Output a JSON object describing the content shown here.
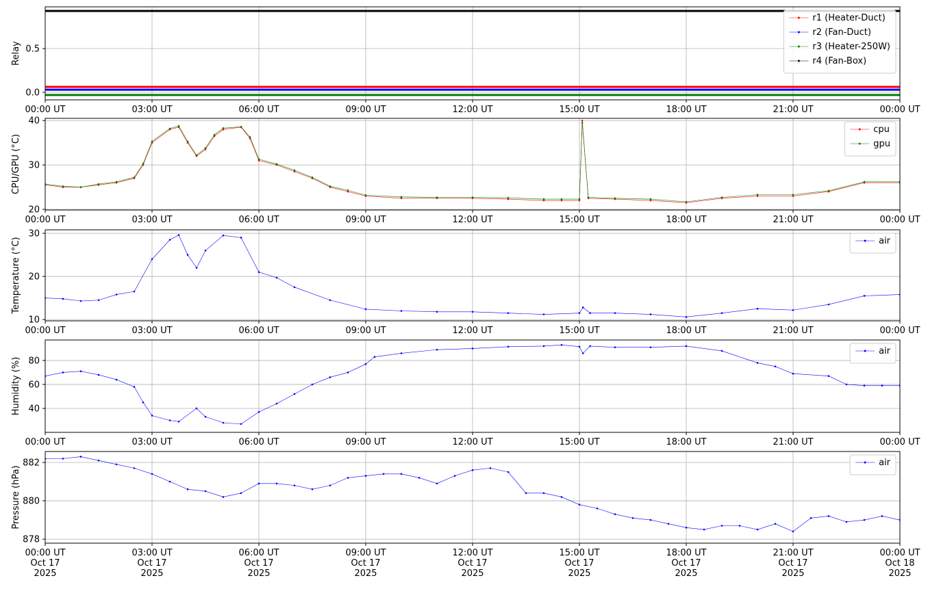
{
  "chart_data": [
    {
      "type": "line",
      "y_label": "Relay",
      "x": [
        0,
        24
      ],
      "xlim": [
        0,
        24
      ],
      "ylim": [
        -0.086,
        0.977
      ],
      "linewidth": 3,
      "grid": true,
      "legend": "upper right",
      "xticks": [
        {
          "value": 0,
          "label": "00:00 UT"
        },
        {
          "value": 3,
          "label": "03:00 UT"
        },
        {
          "value": 6,
          "label": "06:00 UT"
        },
        {
          "value": 9,
          "label": "09:00 UT"
        },
        {
          "value": 12,
          "label": "12:00 UT"
        },
        {
          "value": 15,
          "label": "15:00 UT"
        },
        {
          "value": 18,
          "label": "18:00 UT"
        },
        {
          "value": 21,
          "label": "21:00 UT"
        },
        {
          "value": 24,
          "label": "00:00 UT"
        }
      ],
      "yticks": [
        {
          "value": 0,
          "label": "0.0"
        },
        0.5
      ],
      "series": [
        {
          "name": "r1 (Heater-Duct)",
          "color": "#ff0000",
          "values": [
            0.0625,
            0.0625
          ]
        },
        {
          "name": "r2 (Fan-Duct)",
          "color": "#0000ff",
          "values": [
            0.03,
            0.03
          ]
        },
        {
          "name": "r3 (Heater-250W)",
          "color": "#008000",
          "values": [
            -0.03,
            -0.03
          ]
        },
        {
          "name": "r4 (Fan-Box)",
          "color": "#000000",
          "values": [
            0.93,
            0.93
          ]
        }
      ]
    },
    {
      "type": "line",
      "y_label": "CPU/GPU (°C)",
      "x": [
        0,
        0.5,
        1,
        1.5,
        2,
        2.5,
        2.75,
        3,
        3.5,
        3.75,
        4,
        4.25,
        4.5,
        4.75,
        5,
        5.5,
        5.75,
        6,
        6.5,
        7,
        7.5,
        8,
        8.5,
        9,
        10,
        11,
        12,
        13,
        14,
        14.5,
        15,
        15.08,
        15.25,
        16,
        17,
        18,
        19,
        20,
        21,
        22,
        23,
        24
      ],
      "xlim": [
        0,
        24
      ],
      "ylim": [
        19.85,
        40.5
      ],
      "linewidth": 0.6,
      "grid": true,
      "legend": "upper right",
      "xticks": [
        {
          "value": 0,
          "label": "00:00 UT"
        },
        {
          "value": 3,
          "label": "03:00 UT"
        },
        {
          "value": 6,
          "label": "06:00 UT"
        },
        {
          "value": 9,
          "label": "09:00 UT"
        },
        {
          "value": 12,
          "label": "12:00 UT"
        },
        {
          "value": 15,
          "label": "15:00 UT"
        },
        {
          "value": 18,
          "label": "18:00 UT"
        },
        {
          "value": 21,
          "label": "21:00 UT"
        },
        {
          "value": 24,
          "label": "00:00 UT"
        }
      ],
      "yticks": [
        20,
        30,
        40
      ],
      "series": [
        {
          "name": "cpu",
          "color": "#ff0000",
          "values": [
            25.5,
            25,
            25,
            25.5,
            26,
            27,
            30,
            35,
            38,
            38.5,
            35,
            32,
            33.5,
            36.5,
            38,
            38.5,
            36,
            31,
            30,
            28.5,
            27,
            25,
            24,
            23,
            22.5,
            22.5,
            22.5,
            22.3,
            22,
            22,
            22,
            40,
            22.5,
            22.3,
            22,
            21.5,
            22.5,
            23,
            23,
            24,
            26,
            26
          ]
        },
        {
          "name": "gpu",
          "color": "#008000",
          "values": [
            25.7,
            25.2,
            25,
            25.7,
            26.2,
            27.2,
            30.3,
            35.3,
            38.2,
            38.8,
            35.3,
            32.2,
            33.8,
            36.8,
            38.3,
            38.6,
            36.3,
            31.3,
            30.2,
            28.8,
            27.2,
            25.2,
            24.3,
            23.2,
            22.8,
            22.7,
            22.7,
            22.6,
            22.3,
            22.3,
            22.3,
            39.5,
            22.7,
            22.5,
            22.3,
            21.7,
            22.7,
            23.3,
            23.3,
            24.2,
            26.2,
            26.2
          ]
        }
      ]
    },
    {
      "type": "line",
      "y_label": "Temperature (°C)",
      "x": [
        0,
        0.5,
        1,
        1.5,
        2,
        2.5,
        3,
        3.5,
        3.75,
        4,
        4.25,
        4.5,
        5,
        5.5,
        6,
        6.5,
        7,
        8,
        9,
        10,
        11,
        12,
        13,
        14,
        15,
        15.1,
        15.3,
        16,
        17,
        18,
        19,
        20,
        21,
        22,
        23,
        24
      ],
      "xlim": [
        0,
        24
      ],
      "ylim": [
        9.7,
        30.8
      ],
      "linewidth": 0.6,
      "grid": true,
      "legend": "upper right",
      "xticks": [
        {
          "value": 0,
          "label": "00:00 UT"
        },
        {
          "value": 3,
          "label": "03:00 UT"
        },
        {
          "value": 6,
          "label": "06:00 UT"
        },
        {
          "value": 9,
          "label": "09:00 UT"
        },
        {
          "value": 12,
          "label": "12:00 UT"
        },
        {
          "value": 15,
          "label": "15:00 UT"
        },
        {
          "value": 18,
          "label": "18:00 UT"
        },
        {
          "value": 21,
          "label": "21:00 UT"
        },
        {
          "value": 24,
          "label": "00:00 UT"
        }
      ],
      "yticks": [
        10,
        20,
        30
      ],
      "series": [
        {
          "name": "air",
          "color": "#0000ff",
          "values": [
            15,
            14.8,
            14.3,
            14.5,
            15.8,
            16.5,
            24,
            28.5,
            29.6,
            25,
            22,
            26,
            29.5,
            29,
            21,
            19.7,
            17.5,
            14.5,
            12.4,
            12,
            11.8,
            11.8,
            11.5,
            11.2,
            11.5,
            12.8,
            11.5,
            11.5,
            11.2,
            10.6,
            11.5,
            12.5,
            12.2,
            13.5,
            15.5,
            15.8
          ]
        }
      ]
    },
    {
      "type": "line",
      "y_label": "Humidity (%)",
      "x": [
        0,
        0.5,
        1,
        1.5,
        2,
        2.5,
        2.75,
        3,
        3.5,
        3.75,
        4.25,
        4.5,
        5,
        5.5,
        6,
        6.5,
        7,
        7.5,
        8,
        8.5,
        9,
        9.25,
        10,
        11,
        12,
        13,
        14,
        14.5,
        15,
        15.1,
        15.3,
        16,
        17,
        18,
        19,
        20,
        20.5,
        21,
        22,
        22.5,
        23,
        23.5,
        24
      ],
      "xlim": [
        0,
        24
      ],
      "ylim": [
        20,
        97.1
      ],
      "linewidth": 0.6,
      "grid": true,
      "legend": "upper right",
      "xticks": [
        {
          "value": 0,
          "label": "00:00 UT"
        },
        {
          "value": 3,
          "label": "03:00 UT"
        },
        {
          "value": 6,
          "label": "06:00 UT"
        },
        {
          "value": 9,
          "label": "09:00 UT"
        },
        {
          "value": 12,
          "label": "12:00 UT"
        },
        {
          "value": 15,
          "label": "15:00 UT"
        },
        {
          "value": 18,
          "label": "18:00 UT"
        },
        {
          "value": 21,
          "label": "21:00 UT"
        },
        {
          "value": 24,
          "label": "00:00 UT"
        }
      ],
      "yticks": [
        40,
        60,
        80
      ],
      "series": [
        {
          "name": "air",
          "color": "#0000ff",
          "values": [
            67,
            70,
            71,
            68,
            64,
            58,
            45,
            34,
            30,
            29,
            40,
            33,
            28,
            27,
            37,
            44,
            52,
            60,
            66,
            70,
            77,
            83,
            86,
            89,
            90,
            91.5,
            92,
            93,
            91.5,
            86,
            92,
            91,
            91,
            92,
            88,
            78,
            75,
            69,
            67,
            60,
            59,
            59,
            59
          ]
        }
      ]
    },
    {
      "type": "line",
      "y_label": "Pressure (hPa)",
      "x": [
        0,
        0.5,
        1,
        1.5,
        2,
        2.5,
        3,
        3.5,
        4,
        4.5,
        5,
        5.5,
        6,
        6.5,
        7,
        7.5,
        8,
        8.5,
        9,
        9.5,
        10,
        10.5,
        11,
        11.5,
        12,
        12.5,
        13,
        13.5,
        14,
        14.5,
        15,
        15.5,
        16,
        16.5,
        17,
        17.5,
        18,
        18.5,
        19,
        19.5,
        20,
        20.5,
        21,
        21.5,
        22,
        22.5,
        23,
        23.5,
        24
      ],
      "xlim": [
        0,
        24
      ],
      "ylim": [
        877.79,
        882.57
      ],
      "linewidth": 0.6,
      "grid": true,
      "legend": "upper right",
      "xticks": [
        {
          "value": 0,
          "label": "00:00 UT\nOct 17\n2025"
        },
        {
          "value": 3,
          "label": "03:00 UT\nOct 17\n2025"
        },
        {
          "value": 6,
          "label": "06:00 UT\nOct 17\n2025"
        },
        {
          "value": 9,
          "label": "09:00 UT\nOct 17\n2025"
        },
        {
          "value": 12,
          "label": "12:00 UT\nOct 17\n2025"
        },
        {
          "value": 15,
          "label": "15:00 UT\nOct 17\n2025"
        },
        {
          "value": 18,
          "label": "18:00 UT\nOct 17\n2025"
        },
        {
          "value": 21,
          "label": "21:00 UT\nOct 17\n2025"
        },
        {
          "value": 24,
          "label": "00:00 UT\nOct 18\n2025"
        }
      ],
      "yticks": [
        878,
        880,
        882
      ],
      "series": [
        {
          "name": "air",
          "color": "#0000ff",
          "values": [
            882.2,
            882.2,
            882.3,
            882.1,
            881.9,
            881.7,
            881.4,
            881,
            880.6,
            880.5,
            880.2,
            880.4,
            880.9,
            880.9,
            880.8,
            880.6,
            880.8,
            881.2,
            881.3,
            881.4,
            881.4,
            881.2,
            880.9,
            881.3,
            881.6,
            881.7,
            881.5,
            880.4,
            880.4,
            880.2,
            879.8,
            879.6,
            879.3,
            879.1,
            879,
            878.8,
            878.6,
            878.5,
            878.7,
            878.7,
            878.5,
            878.8,
            878.4,
            879.1,
            879.2,
            878.9,
            879,
            879.2,
            879
          ]
        }
      ]
    }
  ]
}
